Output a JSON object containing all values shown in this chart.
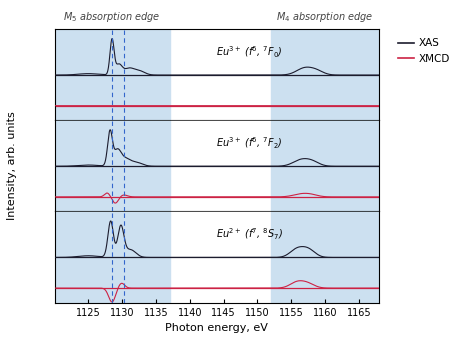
{
  "xlabel": "Photon energy, eV",
  "ylabel": "Intensity, arb. units",
  "xmin": 1120,
  "xmax": 1168,
  "m5_label": "$M_5$ absorption edge",
  "m4_label": "$M_4$ absorption edge",
  "m5_shade": [
    1120,
    1137
  ],
  "m4_shade": [
    1152,
    1168
  ],
  "dashed_lines": [
    1128.5,
    1130.2
  ],
  "panel_labels": [
    "Eu$^{3+}$ (f$^6$, $^7F_0$)",
    "Eu$^{3+}$ (f$^6$, $^7F_2$)",
    "Eu$^{2+}$ (f$^7$, $^8S_7$)"
  ],
  "xas_color": "#1c1c2e",
  "xmcd_color": "#cc2244",
  "bg_color": "#cce0f0",
  "xticks": [
    1125,
    1130,
    1135,
    1140,
    1145,
    1150,
    1155,
    1160,
    1165
  ]
}
